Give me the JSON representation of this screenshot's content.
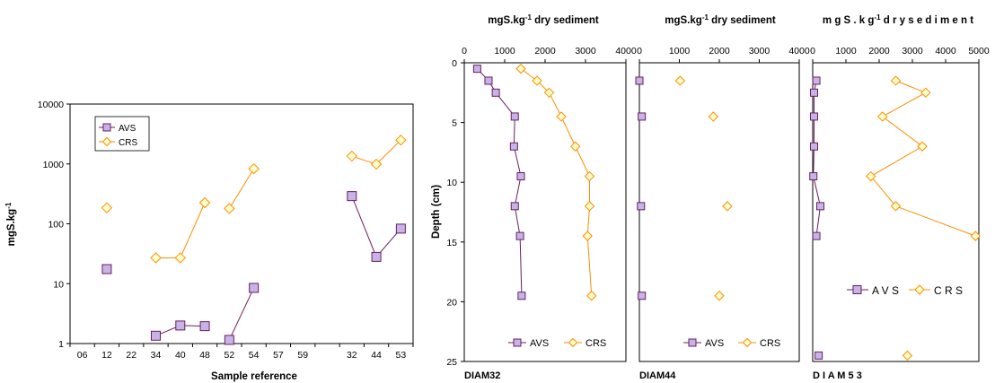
{
  "colors": {
    "avs": "#6b1d5e",
    "avs_fill": "#c6b4e8",
    "crs": "#ff8c00",
    "crs_fill": "#ffffcc"
  },
  "chart_data": [
    {
      "id": "left",
      "type": "line",
      "xlabel": "Sample reference",
      "ylabel": "mgS.kg-1",
      "ylim": [
        1,
        10000
      ],
      "yscale": "log",
      "yticks": [
        "1",
        "10",
        "100",
        "1000",
        "10000"
      ],
      "categories": [
        "06",
        "12",
        "22",
        "34",
        "40",
        "48",
        "52",
        "54",
        "57",
        "59",
        "",
        "32",
        "44",
        "53"
      ],
      "legend": [
        "AVS",
        "CRS"
      ],
      "legend_position": "top-left",
      "series": [
        {
          "name": "AVS",
          "groups": [
            [
              [
                1,
                17.5
              ]
            ],
            [
              [
                3,
                1.35
              ],
              [
                4,
                2.0
              ],
              [
                5,
                1.95
              ]
            ],
            [
              [
                6,
                1.15
              ],
              [
                7,
                8.5
              ]
            ],
            [
              [
                11,
                290
              ],
              [
                12,
                28
              ],
              [
                13,
                83
              ]
            ]
          ]
        },
        {
          "name": "CRS",
          "groups": [
            [
              [
                1,
                185
              ]
            ],
            [
              [
                3,
                27
              ],
              [
                4,
                27
              ],
              [
                5,
                225
              ]
            ],
            [
              [
                6,
                180
              ],
              [
                7,
                830
              ]
            ],
            [
              [
                11,
                1350
              ],
              [
                12,
                990
              ],
              [
                13,
                2500
              ]
            ]
          ]
        }
      ]
    },
    {
      "id": "diam32",
      "type": "line",
      "title": "mgS.kg-1 dry sediment",
      "ylabel": "Depth (cm)",
      "site": "DIAM32",
      "xlim": [
        0,
        4000
      ],
      "xticks": [
        "0",
        "1000",
        "2000",
        "3000",
        "4000"
      ],
      "ylim": [
        0,
        25
      ],
      "yticks": [
        "0",
        "5",
        "10",
        "15",
        "20",
        "25"
      ],
      "legend": [
        "AVS",
        "CRS"
      ],
      "legend_position": "bottom",
      "series": [
        {
          "name": "AVS",
          "connected": true,
          "points": [
            [
              320,
              0.5
            ],
            [
              600,
              1.5
            ],
            [
              780,
              2.5
            ],
            [
              1250,
              4.5
            ],
            [
              1230,
              7
            ],
            [
              1400,
              9.5
            ],
            [
              1250,
              12
            ],
            [
              1380,
              14.5
            ],
            [
              1420,
              19.5
            ]
          ]
        },
        {
          "name": "CRS",
          "connected": true,
          "points": [
            [
              1400,
              0.5
            ],
            [
              1800,
              1.5
            ],
            [
              2100,
              2.5
            ],
            [
              2400,
              4.5
            ],
            [
              2750,
              7
            ],
            [
              3100,
              9.5
            ],
            [
              3100,
              12
            ],
            [
              3050,
              14.5
            ],
            [
              3150,
              19.5
            ]
          ]
        }
      ]
    },
    {
      "id": "diam44",
      "type": "scatter",
      "title": "mgS.kg-1 dry sediment",
      "site": "DIAM44",
      "xlim": [
        0,
        4000
      ],
      "xticks": [
        "0",
        "1000",
        "2000",
        "3000",
        "4000"
      ],
      "ylim": [
        0,
        25
      ],
      "legend": [
        "AVS",
        "CRS"
      ],
      "legend_position": "bottom",
      "series": [
        {
          "name": "AVS",
          "connected": false,
          "points": [
            [
              0,
              1.5
            ],
            [
              60,
              4.5
            ],
            [
              40,
              12
            ],
            [
              60,
              19.5
            ]
          ]
        },
        {
          "name": "CRS",
          "connected": false,
          "points": [
            [
              1020,
              1.5
            ],
            [
              1850,
              4.5
            ],
            [
              2200,
              12
            ],
            [
              2000,
              19.5
            ]
          ]
        }
      ]
    },
    {
      "id": "diam53",
      "type": "line",
      "title": "m g S . k g-1 d r y s e d i m e n t",
      "site": "D I A M 5 3",
      "xlim": [
        0,
        5000
      ],
      "xticks": [
        "0",
        "1000",
        "2000",
        "3000",
        "4000",
        "5000"
      ],
      "ylim": [
        0,
        25
      ],
      "legend": [
        "A V S",
        "C R S"
      ],
      "legend_position": "center-right",
      "series": [
        {
          "name": "AVS",
          "connected": true,
          "points": [
            [
              110,
              1.5
            ],
            [
              40,
              2.5
            ],
            [
              40,
              4.5
            ],
            [
              40,
              7
            ],
            [
              20,
              9.5
            ],
            [
              230,
              12
            ],
            [
              110,
              14.5
            ]
          ]
        },
        {
          "name": "AVS-deep",
          "connected": false,
          "points": [
            [
              180,
              24.5
            ]
          ]
        },
        {
          "name": "CRS",
          "connected": true,
          "points": [
            [
              2500,
              1.5
            ],
            [
              3400,
              2.5
            ],
            [
              2100,
              4.5
            ],
            [
              3300,
              7
            ],
            [
              1750,
              9.5
            ],
            [
              2500,
              12
            ],
            [
              4900,
              14.5
            ]
          ]
        },
        {
          "name": "CRS-deep",
          "connected": false,
          "points": [
            [
              2850,
              24.5
            ]
          ]
        }
      ]
    }
  ]
}
